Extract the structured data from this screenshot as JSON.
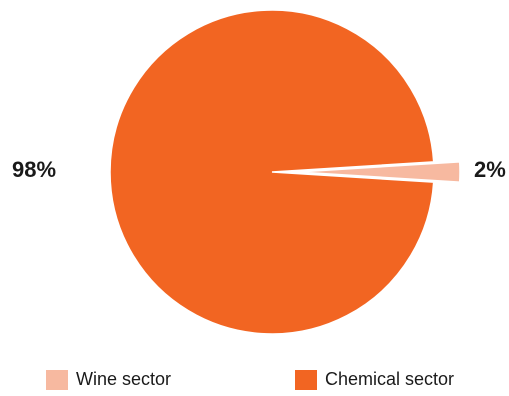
{
  "chart_data": {
    "type": "pie",
    "categories": [
      "Wine sector",
      "Chemical sector"
    ],
    "values": [
      2,
      98
    ],
    "data_labels": [
      "2%",
      "98%"
    ],
    "colors": [
      "#f7b9a0",
      "#f26522"
    ],
    "exploded": [
      "Wine sector"
    ],
    "legend": {
      "placement": "bottom",
      "entries": [
        "Wine sector",
        "Chemical sector"
      ]
    }
  }
}
